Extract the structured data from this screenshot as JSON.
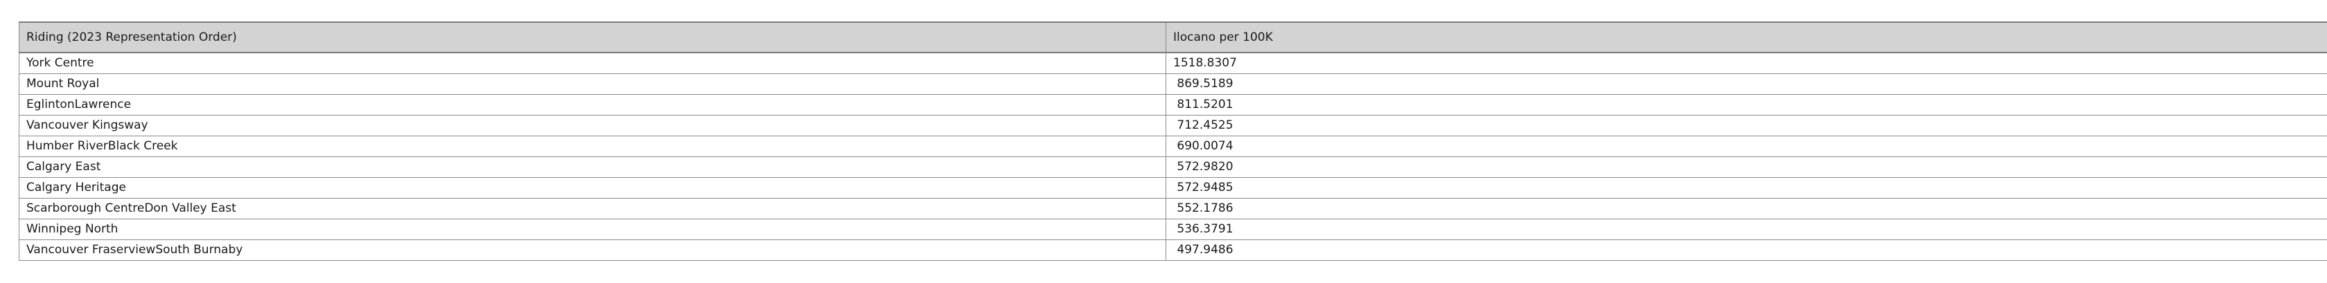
{
  "table": {
    "headers": [
      "Riding (2023 Representation Order)",
      "Ilocano per 100K"
    ],
    "rows": [
      {
        "riding": "York Centre",
        "value": "1518.8307"
      },
      {
        "riding": "Mount Royal",
        "value": " 869.5189"
      },
      {
        "riding": "EglintonLawrence",
        "value": " 811.5201"
      },
      {
        "riding": "Vancouver Kingsway",
        "value": " 712.4525"
      },
      {
        "riding": "Humber RiverBlack Creek",
        "value": " 690.0074"
      },
      {
        "riding": "Calgary East",
        "value": " 572.9820"
      },
      {
        "riding": "Calgary Heritage",
        "value": " 572.9485"
      },
      {
        "riding": "Scarborough CentreDon Valley East",
        "value": " 552.1786"
      },
      {
        "riding": "Winnipeg North",
        "value": " 536.3791"
      },
      {
        "riding": "Vancouver FraserviewSouth Burnaby",
        "value": " 497.9486"
      }
    ]
  }
}
